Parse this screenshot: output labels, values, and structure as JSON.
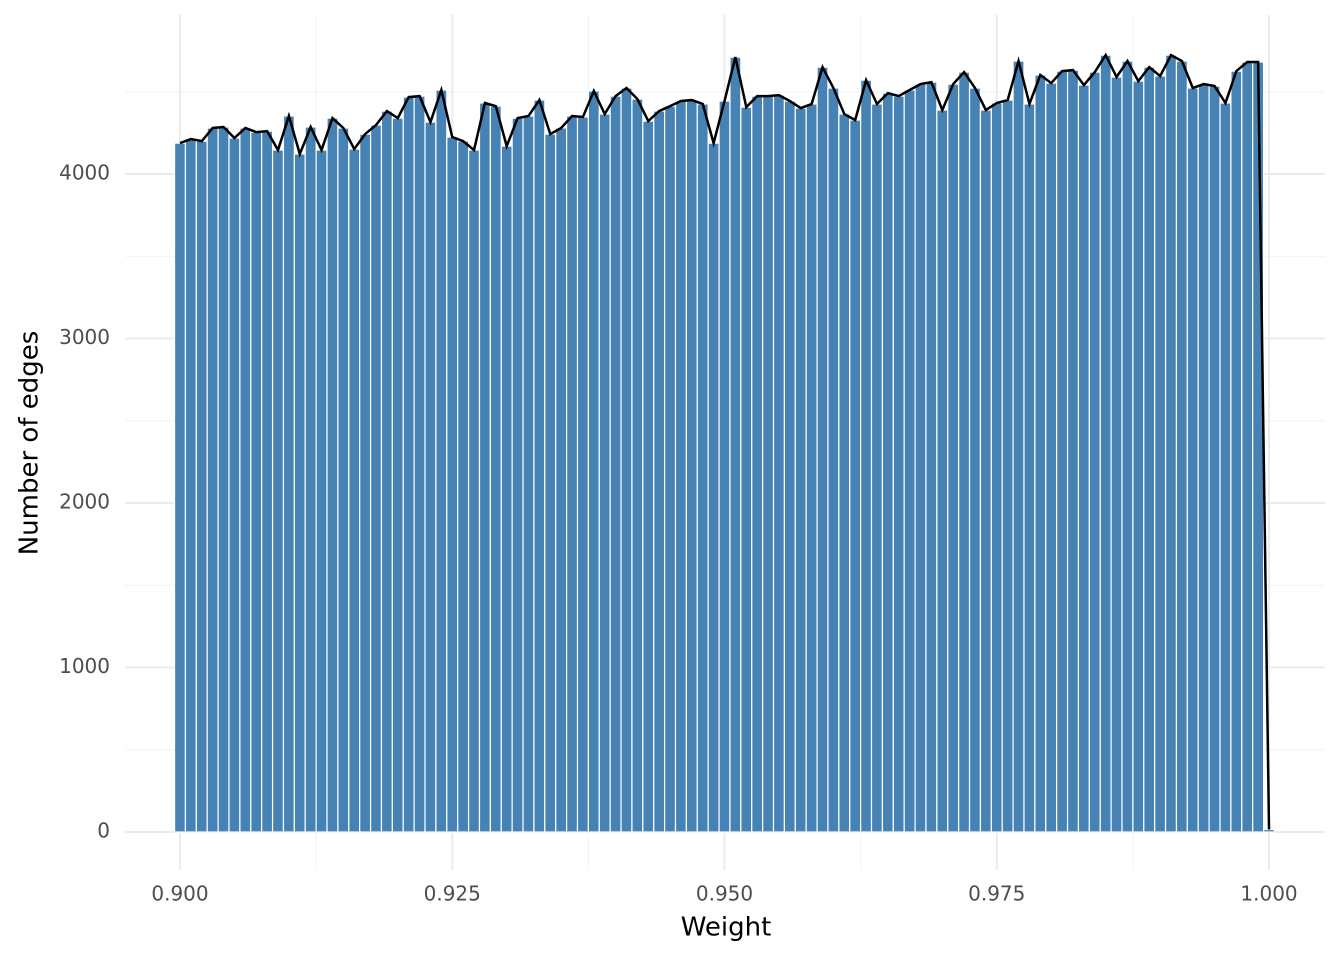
{
  "chart_data": {
    "type": "histogram",
    "x_label": "Weight",
    "y_label": "Number of edges",
    "bins": [
      0.8995,
      0.9005,
      0.9015,
      0.9025,
      0.9035,
      0.9045,
      0.9055,
      0.9065,
      0.9075,
      0.9085,
      0.9095,
      0.9105,
      0.9115,
      0.9125,
      0.9135,
      0.9145,
      0.9155,
      0.9165,
      0.9175,
      0.9185,
      0.9195,
      0.9205,
      0.9215,
      0.9225,
      0.9235,
      0.9245,
      0.9255,
      0.9265,
      0.9275,
      0.9285,
      0.9295,
      0.9305,
      0.9315,
      0.9325,
      0.9335,
      0.9345,
      0.9355,
      0.9365,
      0.9375,
      0.9385,
      0.9395,
      0.9405,
      0.9415,
      0.9425,
      0.9435,
      0.9445,
      0.9455,
      0.9465,
      0.9475,
      0.9485,
      0.9495,
      0.9505,
      0.9515,
      0.9525,
      0.9535,
      0.9545,
      0.9555,
      0.9565,
      0.9575,
      0.9585,
      0.9595,
      0.9605,
      0.9615,
      0.9625,
      0.9635,
      0.9645,
      0.9655,
      0.9665,
      0.9675,
      0.9685,
      0.9695,
      0.9705,
      0.9715,
      0.9725,
      0.9735,
      0.9745,
      0.9755,
      0.9765,
      0.9775,
      0.9785,
      0.9795,
      0.9805,
      0.9815,
      0.9825,
      0.9835,
      0.9845,
      0.9855,
      0.9865,
      0.9875,
      0.9885,
      0.9895,
      0.9905,
      0.9915,
      0.9925,
      0.9935,
      0.9945,
      0.9955,
      0.9965,
      0.9975,
      0.9985,
      0.9995,
      1.0005
    ],
    "values": [
      4188,
      4213,
      4200,
      4280,
      4286,
      4219,
      4280,
      4255,
      4261,
      4146,
      4353,
      4122,
      4286,
      4146,
      4340,
      4280,
      4152,
      4243,
      4298,
      4383,
      4340,
      4468,
      4474,
      4316,
      4511,
      4225,
      4200,
      4146,
      4432,
      4413,
      4170,
      4340,
      4353,
      4450,
      4243,
      4280,
      4353,
      4347,
      4505,
      4365,
      4474,
      4523,
      4456,
      4322,
      4383,
      4413,
      4444,
      4450,
      4426,
      4188,
      4444,
      4711,
      4407,
      4474,
      4474,
      4480,
      4444,
      4401,
      4426,
      4650,
      4523,
      4365,
      4328,
      4571,
      4426,
      4492,
      4474,
      4511,
      4547,
      4559,
      4389,
      4547,
      4620,
      4523,
      4389,
      4432,
      4450,
      4687,
      4426,
      4602,
      4553,
      4626,
      4632,
      4541,
      4620,
      4723,
      4590,
      4687,
      4565,
      4650,
      4596,
      4723,
      4687,
      4523,
      4547,
      4535,
      4432,
      4626,
      4681,
      4681,
      15
    ],
    "color": "#4682b4",
    "line_color": "#000000",
    "xlim": [
      0.89495,
      1.00514
    ],
    "ylim": [
      -231,
      4967
    ],
    "xticks": [
      {
        "value": 0.9,
        "label": "0.900"
      },
      {
        "value": 0.925,
        "label": "0.925"
      },
      {
        "value": 0.95,
        "label": "0.950"
      },
      {
        "value": 0.975,
        "label": "0.975"
      },
      {
        "value": 1.0,
        "label": "1.000"
      }
    ],
    "yticks": [
      0,
      1000,
      2000,
      3000,
      4000
    ],
    "grid": true
  }
}
